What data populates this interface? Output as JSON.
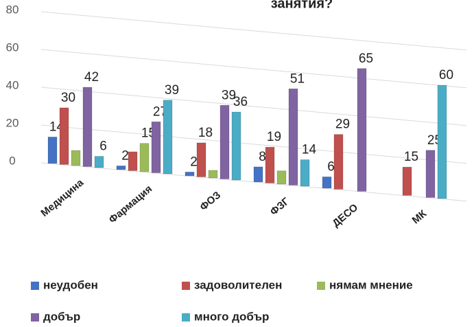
{
  "chart_data": {
    "type": "bar",
    "title": "занятия?",
    "categories": [
      "Медицина",
      "Фармация",
      "ФОЗ",
      "ФЗГ",
      "ДЕСО",
      "МК"
    ],
    "series": [
      {
        "name": "неудобен",
        "color": "#4472c4",
        "values": [
          14,
          2,
          2,
          8,
          6,
          null
        ],
        "value_labels": [
          "14",
          "2",
          "2",
          "8",
          "6",
          null
        ]
      },
      {
        "name": "задоволителен",
        "color": "#c0504d",
        "values": [
          30,
          10,
          18,
          19,
          29,
          15
        ],
        "value_labels": [
          "30",
          null,
          "18",
          "19",
          "29",
          "15"
        ]
      },
      {
        "name": "нямам мнение",
        "color": "#9bbb59",
        "values": [
          8,
          15,
          4,
          7,
          null,
          null
        ],
        "value_labels": [
          null,
          "15",
          null,
          null,
          null,
          null
        ]
      },
      {
        "name": "добър",
        "color": "#8064a2",
        "values": [
          42,
          27,
          39,
          51,
          65,
          25
        ],
        "value_labels": [
          "42",
          "27",
          "39",
          "51",
          "65",
          "25"
        ]
      },
      {
        "name": "много добър",
        "color": "#4bacc6",
        "values": [
          6,
          39,
          36,
          14,
          null,
          60
        ],
        "value_labels": [
          "6",
          "39",
          "36",
          "14",
          null,
          "60"
        ]
      }
    ],
    "ylim": [
      0,
      80
    ],
    "yticks": [
      0,
      20,
      40,
      60,
      80
    ],
    "grid": true,
    "legend": "bottom"
  }
}
